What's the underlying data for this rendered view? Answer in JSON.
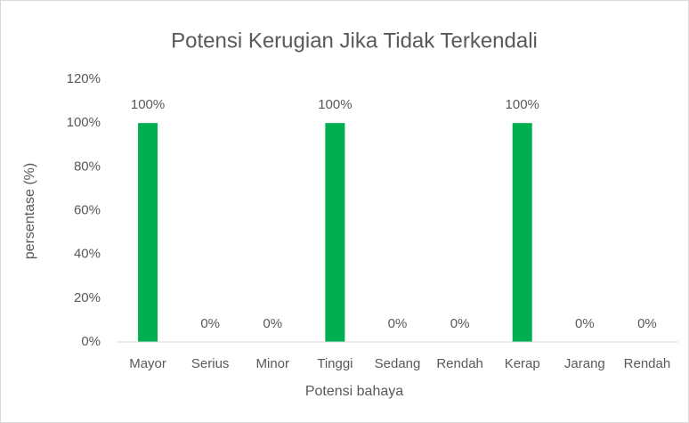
{
  "chart_data": {
    "type": "bar",
    "title": "Potensi Kerugian Jika Tidak Terkendali",
    "x_label": "Potensi bahaya",
    "y_label": "persentase (%)",
    "categories": [
      "Mayor",
      "Serius",
      "Minor",
      "Tinggi",
      "Sedang",
      "Rendah",
      "Kerap",
      "Jarang",
      "Rendah"
    ],
    "values": [
      100,
      0,
      0,
      100,
      0,
      0,
      100,
      0,
      0
    ],
    "value_labels": [
      "100%",
      "0%",
      "0%",
      "100%",
      "0%",
      "0%",
      "100%",
      "0%",
      "0%"
    ],
    "color": "#00b050",
    "ylim": [
      0,
      120
    ],
    "yticks": [
      {
        "value": 0,
        "label": "0%"
      },
      {
        "value": 20,
        "label": "20%"
      },
      {
        "value": 40,
        "label": "40%"
      },
      {
        "value": 60,
        "label": "60%"
      },
      {
        "value": 80,
        "label": "80%"
      },
      {
        "value": 100,
        "label": "100%"
      },
      {
        "value": 120,
        "label": "120%"
      }
    ],
    "grid": false
  }
}
